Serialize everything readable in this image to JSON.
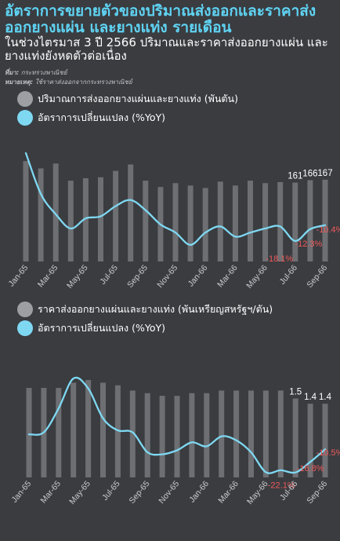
{
  "header": {
    "title": "อัตราการขยายตัวของปริมาณส่งออกและราคาส่งออกยางแผ่น และยางแท่ง รายเดือน",
    "subtitle": "ในช่วงไตรมาส 3 ปี 2566 ปริมาณและราคาส่งออกยางแผ่น และยางแท่งยังหดตัวต่อเนื่อง",
    "source_label": "ที่มา:",
    "source_text": "กระทรวงพาณิชย์",
    "note_label": "หมายเหตุ:",
    "note_text": "ใช้ราคาส่งออกจากกระทรวงพาณิชย์"
  },
  "colors": {
    "title": "#5fd3f3",
    "line": "#7fd8f2",
    "bar": "#6d6f73",
    "negative_label": "#f05a5a",
    "background": "#3a3c40"
  },
  "chart_data": [
    {
      "type": "bar",
      "legend": [
        {
          "name": "ปริมาณการส่งออกยางแผ่นและยางแท่ง (พันตัน)",
          "swatch": "gray-circle"
        },
        {
          "name": "อัตราการเปลี่ยนแปลง (%YoY)",
          "swatch": "blue-circle"
        }
      ],
      "categories": [
        "Jan-65",
        "Feb-65",
        "Mar-65",
        "Apr-65",
        "May-65",
        "Jun-65",
        "Jul-65",
        "Aug-65",
        "Sep-65",
        "Oct-65",
        "Nov-65",
        "Dec-65",
        "Jan-66",
        "Feb-66",
        "Mar-66",
        "Apr-66",
        "May-66",
        "Jun-66",
        "Jul-66",
        "Aug-66",
        "Sep-66"
      ],
      "xtick_labels": [
        "Jan-65",
        "Mar-65",
        "May-65",
        "Jul-65",
        "Sep-65",
        "Nov-65",
        "Jan-66",
        "Mar-66",
        "May-66",
        "Jul-66",
        "Sep-66"
      ],
      "series": [
        {
          "name": "ปริมาณการส่งออกยางแผ่นและยางแท่ง (พันตัน)",
          "kind": "bar",
          "values": [
            205,
            190,
            200,
            165,
            170,
            172,
            185,
            198,
            165,
            152,
            160,
            155,
            150,
            163,
            155,
            165,
            160,
            162,
            161,
            166,
            167
          ]
        },
        {
          "name": "อัตราการเปลี่ยนแปลง (%YoY)",
          "kind": "line",
          "values": [
            25,
            5,
            -5,
            -12,
            -7,
            -6,
            -1,
            2,
            -3,
            -10,
            -14,
            -20,
            -14,
            -11,
            -16,
            -14,
            -12,
            -11,
            -18.1,
            -12.3,
            -10.4
          ]
        }
      ],
      "data_labels": {
        "bars": [
          "161",
          "166",
          "167"
        ],
        "line": [
          "-18.1%",
          "-12.3%",
          "-10.4%"
        ]
      }
    },
    {
      "type": "bar",
      "legend": [
        {
          "name": "ราคาส่งออกยางแผ่นและยางแท่ง (พันเหรียญสหรัฐฯ/ตัน)",
          "swatch": "gray-circle"
        },
        {
          "name": "อัตราการเปลี่ยนแปลง (%YoY)",
          "swatch": "blue-circle"
        }
      ],
      "categories": [
        "Jan-65",
        "Feb-65",
        "Mar-65",
        "Apr-65",
        "May-65",
        "Jun-65",
        "Jul-65",
        "Aug-65",
        "Sep-65",
        "Oct-65",
        "Nov-65",
        "Dec-65",
        "Jan-66",
        "Feb-66",
        "Mar-66",
        "Apr-66",
        "May-66",
        "Jun-66",
        "Jul-66",
        "Aug-66",
        "Sep-66"
      ],
      "xtick_labels": [
        "Jan-65",
        "Mar-65",
        "May-65",
        "Jul-65",
        "Sep-65",
        "Nov-65",
        "Jan-66",
        "Mar-66",
        "May-66",
        "Jul-66",
        "Sep-66"
      ],
      "series": [
        {
          "name": "ราคาส่งออกยางแผ่นและยางแท่ง (พันเหรียญสหรัฐฯ/ตัน)",
          "kind": "bar",
          "values": [
            1.7,
            1.7,
            1.7,
            1.8,
            1.85,
            1.8,
            1.75,
            1.65,
            1.6,
            1.55,
            1.55,
            1.6,
            1.6,
            1.65,
            1.65,
            1.65,
            1.65,
            1.65,
            1.5,
            1.4,
            1.4
          ]
        },
        {
          "name": "อัตราการเปลี่ยนแปลง (%YoY)",
          "kind": "line",
          "values": [
            -3,
            -2,
            10,
            25,
            20,
            5,
            -1,
            -2,
            -12,
            -13,
            -11,
            -7,
            -9,
            -4,
            -6,
            -12,
            -22,
            -21,
            -22.1,
            -16.8,
            -10.5
          ]
        }
      ],
      "data_labels": {
        "bars": [
          "1.5",
          "1.4",
          "1.4"
        ],
        "line": [
          "-22.1%",
          "-16.8%",
          "-10.5%"
        ]
      }
    }
  ]
}
